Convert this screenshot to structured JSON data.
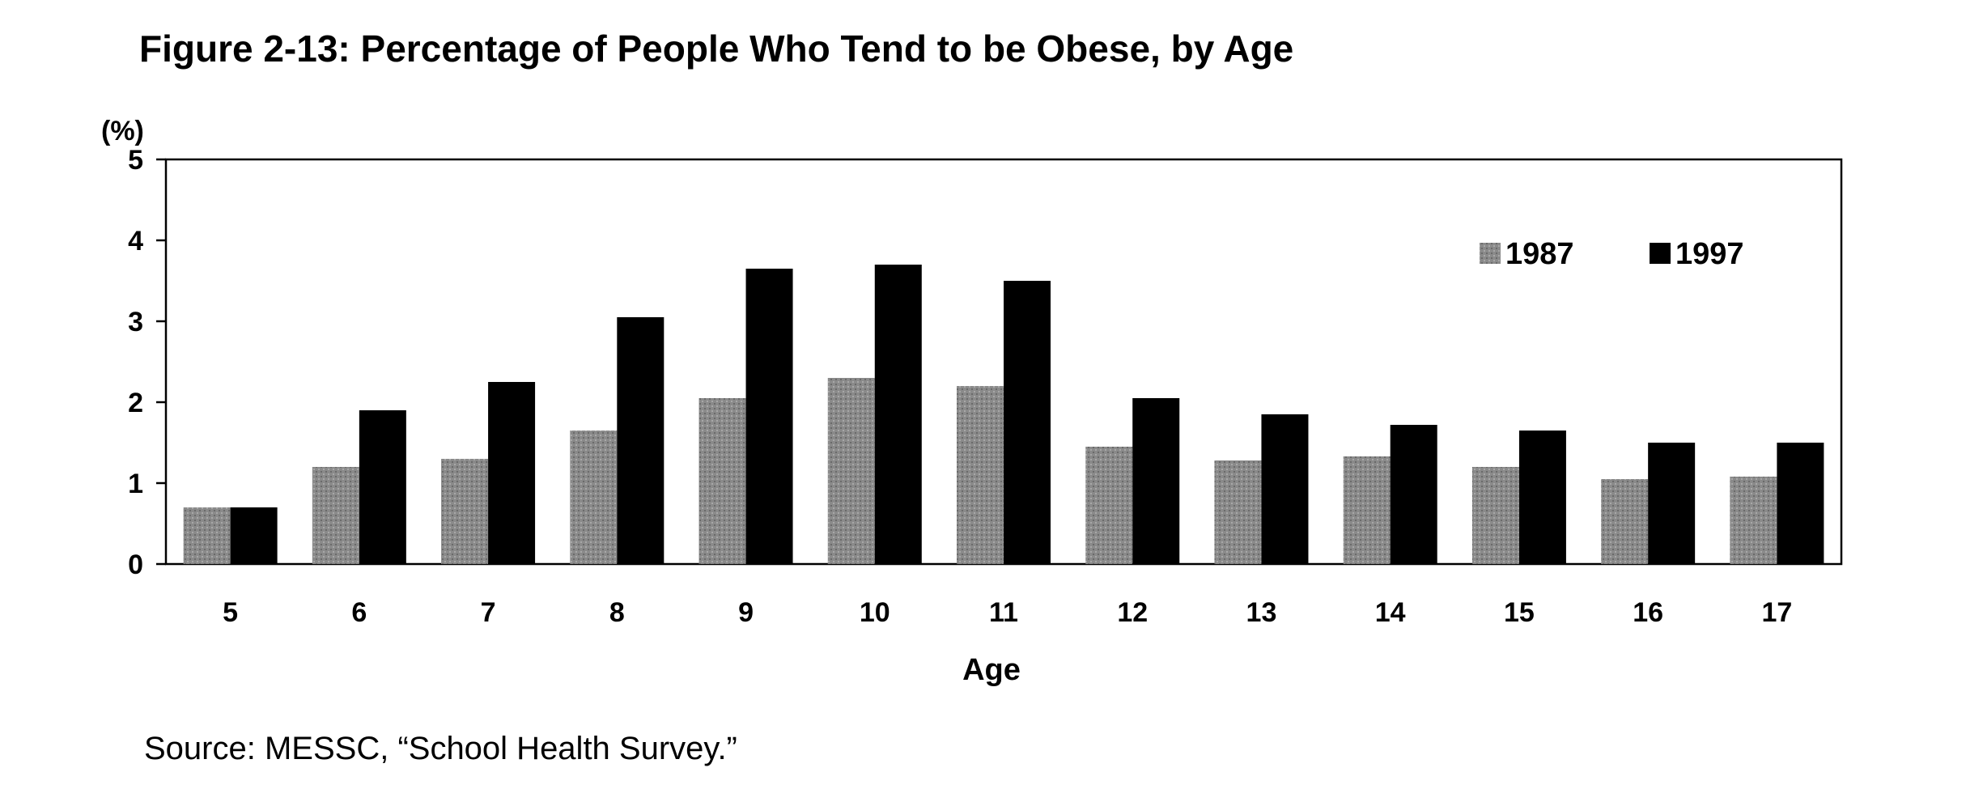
{
  "header": {
    "title": "Figure 2-13: Percentage of People Who Tend to be Obese, by Age"
  },
  "footer": {
    "source": "Source: MESSC, “School Health Survey.”"
  },
  "chart_data": {
    "type": "bar",
    "title": "Figure 2-13: Percentage of People Who Tend to be Obese, by Age",
    "xlabel": "Age",
    "ylabel": "(%)",
    "ylim": [
      0,
      5
    ],
    "yticks": [
      "0",
      "1",
      "2",
      "3",
      "4",
      "5"
    ],
    "grid": false,
    "legend_position": "top-right",
    "categories": [
      "5",
      "6",
      "7",
      "8",
      "9",
      "10",
      "11",
      "12",
      "13",
      "14",
      "15",
      "16",
      "17"
    ],
    "series": [
      {
        "name": "1987",
        "color": "#8a8a8a",
        "values": [
          0.7,
          1.2,
          1.3,
          1.65,
          2.05,
          2.3,
          2.2,
          1.45,
          1.28,
          1.33,
          1.2,
          1.05,
          1.08
        ]
      },
      {
        "name": "1997",
        "color": "#000000",
        "values": [
          0.7,
          1.9,
          2.25,
          3.05,
          3.65,
          3.7,
          3.5,
          2.05,
          1.85,
          1.72,
          1.65,
          1.5,
          1.5
        ]
      }
    ]
  }
}
